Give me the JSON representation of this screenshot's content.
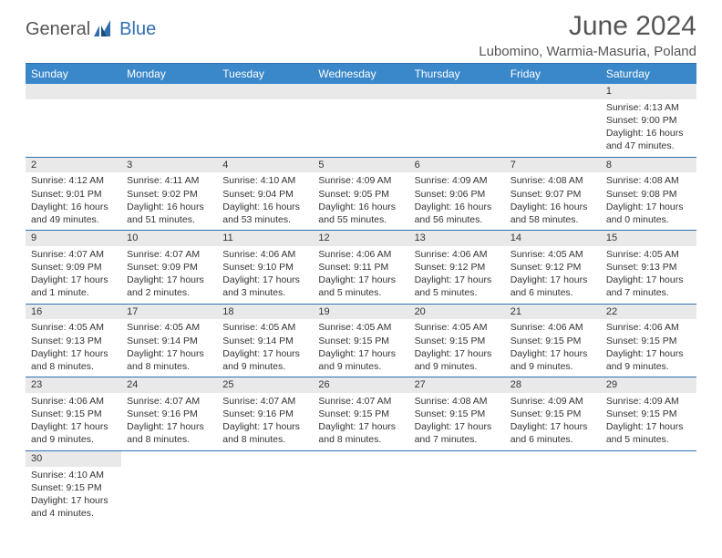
{
  "logo": {
    "general": "General",
    "blue": "Blue"
  },
  "title": "June 2024",
  "subtitle": "Lubomino, Warmia-Masuria, Poland",
  "colors": {
    "header_bg": "#3a88c9",
    "rule": "#2f6fb0",
    "date_bg": "#e9e9e9",
    "text": "#333333",
    "title": "#555555"
  },
  "day_headers": [
    "Sunday",
    "Monday",
    "Tuesday",
    "Wednesday",
    "Thursday",
    "Friday",
    "Saturday"
  ],
  "weeks": [
    [
      null,
      null,
      null,
      null,
      null,
      null,
      {
        "d": "1",
        "sr": "Sunrise: 4:13 AM",
        "ss": "Sunset: 9:00 PM",
        "dl1": "Daylight: 16 hours",
        "dl2": "and 47 minutes."
      }
    ],
    [
      {
        "d": "2",
        "sr": "Sunrise: 4:12 AM",
        "ss": "Sunset: 9:01 PM",
        "dl1": "Daylight: 16 hours",
        "dl2": "and 49 minutes."
      },
      {
        "d": "3",
        "sr": "Sunrise: 4:11 AM",
        "ss": "Sunset: 9:02 PM",
        "dl1": "Daylight: 16 hours",
        "dl2": "and 51 minutes."
      },
      {
        "d": "4",
        "sr": "Sunrise: 4:10 AM",
        "ss": "Sunset: 9:04 PM",
        "dl1": "Daylight: 16 hours",
        "dl2": "and 53 minutes."
      },
      {
        "d": "5",
        "sr": "Sunrise: 4:09 AM",
        "ss": "Sunset: 9:05 PM",
        "dl1": "Daylight: 16 hours",
        "dl2": "and 55 minutes."
      },
      {
        "d": "6",
        "sr": "Sunrise: 4:09 AM",
        "ss": "Sunset: 9:06 PM",
        "dl1": "Daylight: 16 hours",
        "dl2": "and 56 minutes."
      },
      {
        "d": "7",
        "sr": "Sunrise: 4:08 AM",
        "ss": "Sunset: 9:07 PM",
        "dl1": "Daylight: 16 hours",
        "dl2": "and 58 minutes."
      },
      {
        "d": "8",
        "sr": "Sunrise: 4:08 AM",
        "ss": "Sunset: 9:08 PM",
        "dl1": "Daylight: 17 hours",
        "dl2": "and 0 minutes."
      }
    ],
    [
      {
        "d": "9",
        "sr": "Sunrise: 4:07 AM",
        "ss": "Sunset: 9:09 PM",
        "dl1": "Daylight: 17 hours",
        "dl2": "and 1 minute."
      },
      {
        "d": "10",
        "sr": "Sunrise: 4:07 AM",
        "ss": "Sunset: 9:09 PM",
        "dl1": "Daylight: 17 hours",
        "dl2": "and 2 minutes."
      },
      {
        "d": "11",
        "sr": "Sunrise: 4:06 AM",
        "ss": "Sunset: 9:10 PM",
        "dl1": "Daylight: 17 hours",
        "dl2": "and 3 minutes."
      },
      {
        "d": "12",
        "sr": "Sunrise: 4:06 AM",
        "ss": "Sunset: 9:11 PM",
        "dl1": "Daylight: 17 hours",
        "dl2": "and 5 minutes."
      },
      {
        "d": "13",
        "sr": "Sunrise: 4:06 AM",
        "ss": "Sunset: 9:12 PM",
        "dl1": "Daylight: 17 hours",
        "dl2": "and 5 minutes."
      },
      {
        "d": "14",
        "sr": "Sunrise: 4:05 AM",
        "ss": "Sunset: 9:12 PM",
        "dl1": "Daylight: 17 hours",
        "dl2": "and 6 minutes."
      },
      {
        "d": "15",
        "sr": "Sunrise: 4:05 AM",
        "ss": "Sunset: 9:13 PM",
        "dl1": "Daylight: 17 hours",
        "dl2": "and 7 minutes."
      }
    ],
    [
      {
        "d": "16",
        "sr": "Sunrise: 4:05 AM",
        "ss": "Sunset: 9:13 PM",
        "dl1": "Daylight: 17 hours",
        "dl2": "and 8 minutes."
      },
      {
        "d": "17",
        "sr": "Sunrise: 4:05 AM",
        "ss": "Sunset: 9:14 PM",
        "dl1": "Daylight: 17 hours",
        "dl2": "and 8 minutes."
      },
      {
        "d": "18",
        "sr": "Sunrise: 4:05 AM",
        "ss": "Sunset: 9:14 PM",
        "dl1": "Daylight: 17 hours",
        "dl2": "and 9 minutes."
      },
      {
        "d": "19",
        "sr": "Sunrise: 4:05 AM",
        "ss": "Sunset: 9:15 PM",
        "dl1": "Daylight: 17 hours",
        "dl2": "and 9 minutes."
      },
      {
        "d": "20",
        "sr": "Sunrise: 4:05 AM",
        "ss": "Sunset: 9:15 PM",
        "dl1": "Daylight: 17 hours",
        "dl2": "and 9 minutes."
      },
      {
        "d": "21",
        "sr": "Sunrise: 4:06 AM",
        "ss": "Sunset: 9:15 PM",
        "dl1": "Daylight: 17 hours",
        "dl2": "and 9 minutes."
      },
      {
        "d": "22",
        "sr": "Sunrise: 4:06 AM",
        "ss": "Sunset: 9:15 PM",
        "dl1": "Daylight: 17 hours",
        "dl2": "and 9 minutes."
      }
    ],
    [
      {
        "d": "23",
        "sr": "Sunrise: 4:06 AM",
        "ss": "Sunset: 9:15 PM",
        "dl1": "Daylight: 17 hours",
        "dl2": "and 9 minutes."
      },
      {
        "d": "24",
        "sr": "Sunrise: 4:07 AM",
        "ss": "Sunset: 9:16 PM",
        "dl1": "Daylight: 17 hours",
        "dl2": "and 8 minutes."
      },
      {
        "d": "25",
        "sr": "Sunrise: 4:07 AM",
        "ss": "Sunset: 9:16 PM",
        "dl1": "Daylight: 17 hours",
        "dl2": "and 8 minutes."
      },
      {
        "d": "26",
        "sr": "Sunrise: 4:07 AM",
        "ss": "Sunset: 9:15 PM",
        "dl1": "Daylight: 17 hours",
        "dl2": "and 8 minutes."
      },
      {
        "d": "27",
        "sr": "Sunrise: 4:08 AM",
        "ss": "Sunset: 9:15 PM",
        "dl1": "Daylight: 17 hours",
        "dl2": "and 7 minutes."
      },
      {
        "d": "28",
        "sr": "Sunrise: 4:09 AM",
        "ss": "Sunset: 9:15 PM",
        "dl1": "Daylight: 17 hours",
        "dl2": "and 6 minutes."
      },
      {
        "d": "29",
        "sr": "Sunrise: 4:09 AM",
        "ss": "Sunset: 9:15 PM",
        "dl1": "Daylight: 17 hours",
        "dl2": "and 5 minutes."
      }
    ],
    [
      {
        "d": "30",
        "sr": "Sunrise: 4:10 AM",
        "ss": "Sunset: 9:15 PM",
        "dl1": "Daylight: 17 hours",
        "dl2": "and 4 minutes."
      },
      null,
      null,
      null,
      null,
      null,
      null
    ]
  ]
}
